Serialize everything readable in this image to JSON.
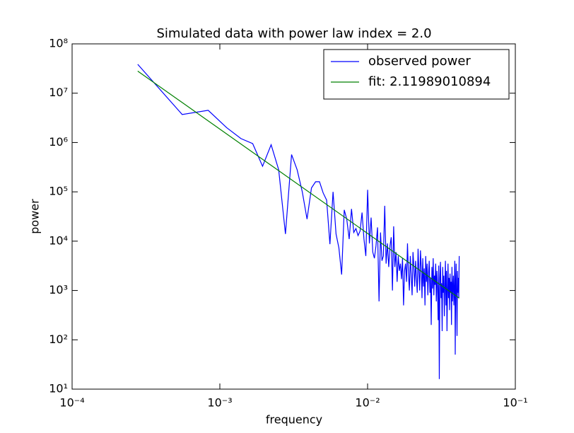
{
  "chart_data": {
    "type": "line",
    "title": "Simulated data with power law index = 2.0",
    "x_label": "frequency",
    "y_label": "power",
    "log_x": true,
    "log_y": true,
    "grid": false,
    "legend": "upper right",
    "xlim": [
      0.0001,
      0.1
    ],
    "ylim": [
      10,
      100000000
    ],
    "xticks": [
      {
        "value": 0.0001,
        "label": "10⁻⁴"
      },
      {
        "value": 0.001,
        "label": "10⁻³"
      },
      {
        "value": 0.01,
        "label": "10⁻²"
      },
      {
        "value": 0.1,
        "label": "10⁻¹"
      }
    ],
    "yticks": [
      {
        "value": 10,
        "label": "10¹"
      },
      {
        "value": 100,
        "label": "10²"
      },
      {
        "value": 1000,
        "label": "10³"
      },
      {
        "value": 10000,
        "label": "10⁴"
      },
      {
        "value": 100000,
        "label": "10⁵"
      },
      {
        "value": 1000000,
        "label": "10⁶"
      },
      {
        "value": 10000000,
        "label": "10⁷"
      },
      {
        "value": 100000000,
        "label": "10⁸"
      }
    ],
    "series": [
      {
        "name": "observed power",
        "color": "#0000ff",
        "x": [
          0.000278,
          0.000556,
          0.000834,
          0.001112,
          0.00139,
          0.001668,
          0.001946,
          0.002224,
          0.002502,
          0.00278,
          0.003058,
          0.003336,
          0.003614,
          0.003892,
          0.00417,
          0.004448,
          0.004726,
          0.005004,
          0.005282,
          0.00556,
          0.005838,
          0.006116,
          0.006394,
          0.006672,
          0.00695,
          0.007228,
          0.007506,
          0.007784,
          0.008062,
          0.00834,
          0.008618,
          0.008896,
          0.009174,
          0.009452,
          0.00973,
          0.010008,
          0.010286,
          0.010564,
          0.010842,
          0.01112,
          0.011398,
          0.011676,
          0.011954,
          0.012232,
          0.01251,
          0.012788,
          0.013066,
          0.013344,
          0.013622,
          0.0139,
          0.014178,
          0.014456,
          0.014734,
          0.015012,
          0.01529,
          0.015568,
          0.015846,
          0.016124,
          0.016402,
          0.01668,
          0.016958,
          0.017236,
          0.017514,
          0.017792,
          0.01807,
          0.018348,
          0.018626,
          0.018904,
          0.019182,
          0.01946,
          0.019738,
          0.020016,
          0.020294,
          0.020572,
          0.02085,
          0.021128,
          0.021406,
          0.021684,
          0.021962,
          0.02224,
          0.022518,
          0.022796,
          0.023074,
          0.023352,
          0.02363,
          0.023908,
          0.024186,
          0.024464,
          0.024742,
          0.02502,
          0.025298,
          0.025576,
          0.025854,
          0.026132,
          0.02641,
          0.026688,
          0.026966,
          0.027244,
          0.027522,
          0.0278,
          0.028078,
          0.028356,
          0.028634,
          0.028912,
          0.02919,
          0.029468,
          0.029746,
          0.030024,
          0.030302,
          0.03058,
          0.030858,
          0.031136,
          0.031414,
          0.031692,
          0.03197,
          0.032248,
          0.032526,
          0.032804,
          0.033082,
          0.03336,
          0.033638,
          0.033916,
          0.034194,
          0.034472,
          0.03475,
          0.035028,
          0.035306,
          0.035584,
          0.035862,
          0.03614,
          0.036418,
          0.036696,
          0.036974,
          0.037252,
          0.03753,
          0.037808,
          0.038086,
          0.038364,
          0.038642,
          0.03892,
          0.039198,
          0.039476,
          0.039754,
          0.040032,
          0.04031,
          0.040588,
          0.040866,
          0.041144,
          0.041422,
          0.0417
        ],
        "values": [
          38500000,
          3700000,
          4500000,
          2000000,
          1200000,
          950000,
          330000,
          900000,
          280000,
          14000,
          570000,
          280000,
          100000,
          28000,
          120000,
          160000,
          160000,
          95000,
          68000,
          8700,
          100000,
          14000,
          7300,
          2100,
          43000,
          28000,
          11000,
          45000,
          15000,
          18000,
          13000,
          16000,
          38000,
          11000,
          5000,
          110000,
          9000,
          30000,
          6000,
          4500,
          8000,
          19000,
          600,
          15000,
          4000,
          5000,
          52000,
          3500,
          9000,
          3000,
          8000,
          12000,
          1000,
          20000,
          3000,
          6000,
          1500,
          5000,
          2500,
          3500,
          1700,
          4500,
          500,
          2500,
          3500,
          1500,
          9000,
          2200,
          1000,
          5000,
          2000,
          800,
          6000,
          3000,
          1200,
          4000,
          1800,
          900,
          7000,
          2500,
          1000,
          6500,
          3000,
          700,
          4500,
          1200,
          2800,
          500,
          5000,
          1500,
          3500,
          800,
          2200,
          4000,
          900,
          1800,
          200,
          3000,
          1100,
          4500,
          800,
          2000,
          1300,
          3500,
          600,
          2500,
          1100,
          250,
          3200,
          16,
          1800,
          3800,
          700,
          1400,
          150,
          3000,
          900,
          2000,
          300,
          1200,
          4000,
          500,
          2500,
          150,
          1000,
          3500,
          700,
          1800,
          400,
          2200,
          900,
          1500,
          200,
          3000,
          600,
          1200,
          2000,
          500,
          1000,
          4000,
          50,
          1500,
          3500,
          700,
          120,
          2500,
          900,
          1800,
          700,
          5000
        ]
      },
      {
        "name": "fit: 2.11989010894",
        "color": "#008000",
        "x": [
          0.000278,
          0.0417
        ],
        "values": [
          28000000,
          700
        ]
      }
    ]
  }
}
